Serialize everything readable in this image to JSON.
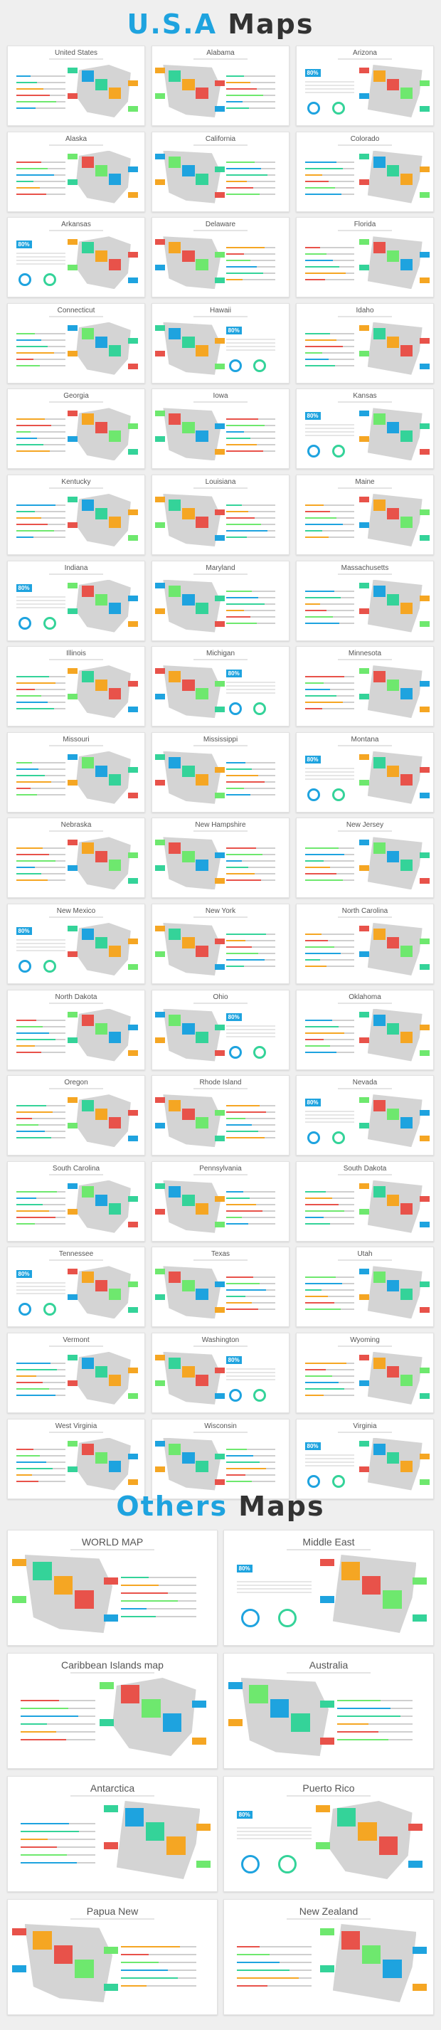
{
  "headings": {
    "usa": {
      "part1": "U.S.A",
      "part2": " Maps"
    },
    "others": {
      "part1": "Others",
      "part2": " Maps"
    }
  },
  "usa_maps": [
    "United States",
    "Alabama",
    "Arizona",
    "Alaska",
    "California",
    "Colorado",
    "Arkansas",
    "Delaware",
    "Florida",
    "Connecticut",
    "Hawaii",
    "Idaho",
    "Georgia",
    "Iowa",
    "Kansas",
    "Kentucky",
    "Louisiana",
    "Maine",
    "Indiana",
    "Maryland",
    "Massachusetts",
    "Illinois",
    "Michigan",
    "Minnesota",
    "Missouri",
    "Mississippi",
    "Montana",
    "Nebraska",
    "New Hampshire",
    "New Jersey",
    "New Mexico",
    "New York",
    "North Carolina",
    "North Dakota",
    "Ohio",
    "Oklahoma",
    "Oregon",
    "Rhode Island",
    "Nevada",
    "South Carolina",
    "Pennsylvania",
    "South Dakota",
    "Tennessee",
    "Texas",
    "Utah",
    "Vermont",
    "Washington",
    "Wyoming",
    "West Virginia",
    "Wisconsin",
    "Virginia"
  ],
  "other_maps": [
    "WORLD MAP",
    "Middle East",
    "Caribbean Islands map",
    "Australia",
    "Antarctica",
    "Puerto Rico",
    "Papua New",
    "New Zealand"
  ],
  "badge_value": "80%",
  "colors": {
    "accent": "#1ea3df",
    "green": "#34d399",
    "orange": "#f5a623",
    "red": "#e8524a",
    "lime": "#6ee86e",
    "gray_map": "#d4d4d4"
  }
}
